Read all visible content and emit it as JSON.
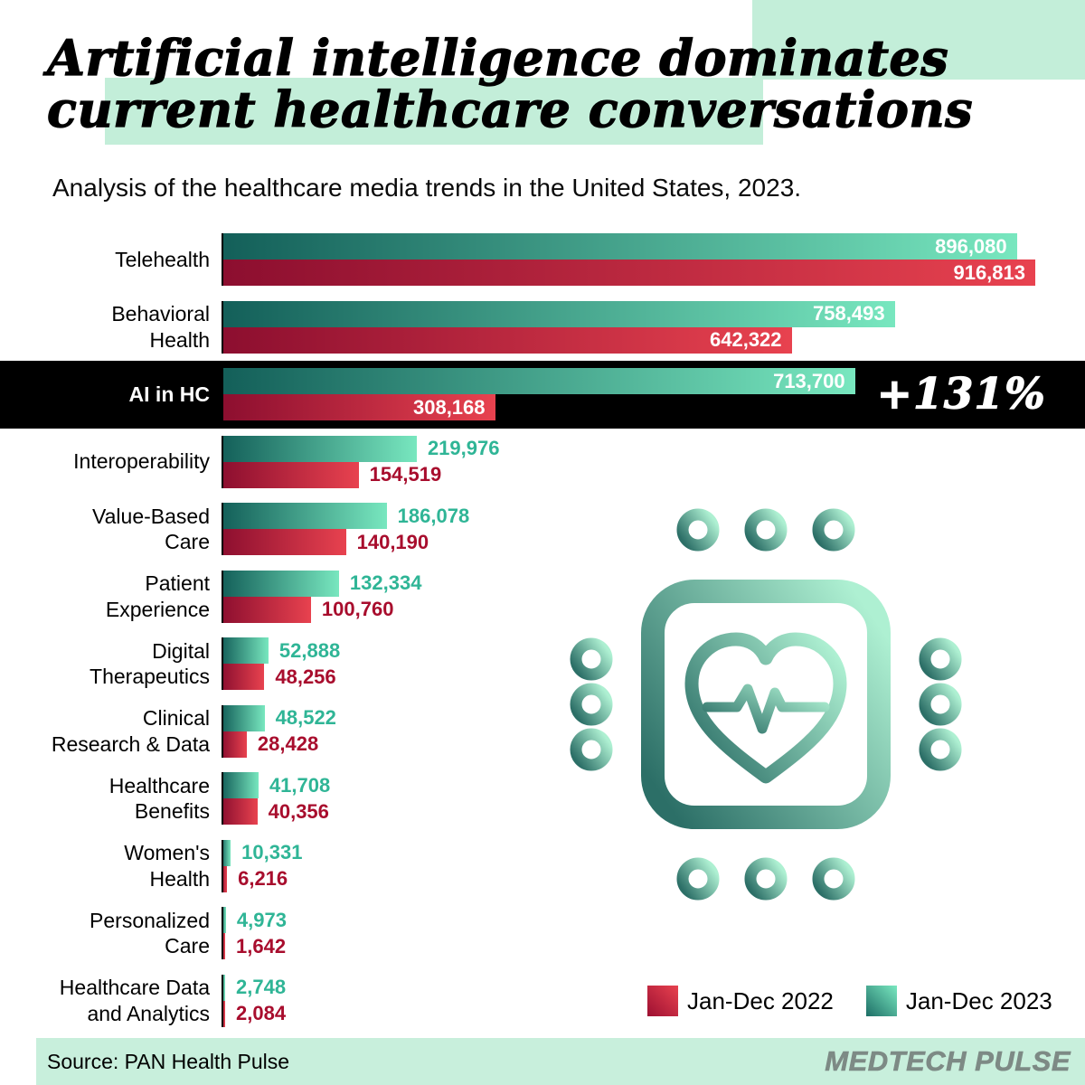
{
  "title": {
    "line1": "Artificial intelligence dominates",
    "line2": "current healthcare conversations"
  },
  "subtitle": "Analysis of the healthcare media trends in the United States, 2023.",
  "chart_data": {
    "type": "bar",
    "orientation": "horizontal",
    "title": "Artificial intelligence dominates current healthcare conversations",
    "subtitle": "Analysis of the healthcare media trends in the United States, 2023.",
    "max_value": 916813,
    "series_names": [
      "Jan-Dec 2023",
      "Jan-Dec 2022"
    ],
    "categories": [
      "Telehealth",
      "Behavioral Health",
      "AI in HC",
      "Interoperability",
      "Value-Based Care",
      "Patient Experience",
      "Digital Therapeutics",
      "Clinical Research & Data",
      "Healthcare Benefits",
      "Women's Health",
      "Personalized Care",
      "Healthcare Data and Analytics"
    ],
    "rows": [
      {
        "label": [
          "Telehealth"
        ],
        "v2023": 896080,
        "l2023": "896,080",
        "v2022": 916813,
        "l2022": "916,813",
        "highlight": false
      },
      {
        "label": [
          "Behavioral",
          "Health"
        ],
        "v2023": 758493,
        "l2023": "758,493",
        "v2022": 642322,
        "l2022": "642,322",
        "highlight": false
      },
      {
        "label": [
          "AI in HC"
        ],
        "v2023": 713700,
        "l2023": "713,700",
        "v2022": 308168,
        "l2022": "308,168",
        "highlight": true,
        "annotation": "+131%"
      },
      {
        "label": [
          "Interoperability"
        ],
        "v2023": 219976,
        "l2023": "219,976",
        "v2022": 154519,
        "l2022": "154,519",
        "highlight": false
      },
      {
        "label": [
          "Value-Based",
          "Care"
        ],
        "v2023": 186078,
        "l2023": "186,078",
        "v2022": 140190,
        "l2022": "140,190",
        "highlight": false
      },
      {
        "label": [
          "Patient",
          "Experience"
        ],
        "v2023": 132334,
        "l2023": "132,334",
        "v2022": 100760,
        "l2022": "100,760",
        "highlight": false
      },
      {
        "label": [
          "Digital",
          "Therapeutics"
        ],
        "v2023": 52888,
        "l2023": "52,888",
        "v2022": 48256,
        "l2022": "48,256",
        "highlight": false
      },
      {
        "label": [
          "Clinical",
          "Research & Data"
        ],
        "v2023": 48522,
        "l2023": "48,522",
        "v2022": 28428,
        "l2022": "28,428",
        "highlight": false
      },
      {
        "label": [
          "Healthcare",
          "Benefits"
        ],
        "v2023": 41708,
        "l2023": "41,708",
        "v2022": 40356,
        "l2022": "40,356",
        "highlight": false
      },
      {
        "label": [
          "Women's",
          "Health"
        ],
        "v2023": 10331,
        "l2023": "10,331",
        "v2022": 6216,
        "l2022": "6,216",
        "highlight": false
      },
      {
        "label": [
          "Personalized",
          "Care"
        ],
        "v2023": 4973,
        "l2023": "4,973",
        "v2022": 1642,
        "l2022": "1,642",
        "highlight": false
      },
      {
        "label": [
          "Healthcare Data",
          "and Analytics"
        ],
        "v2023": 2748,
        "l2023": "2,748",
        "v2022": 2084,
        "l2022": "2,084",
        "highlight": false
      }
    ],
    "legend_position": "bottom-right",
    "grid": false
  },
  "legend": [
    {
      "label": "Jan-Dec 2022",
      "color": "#c61f3e"
    },
    {
      "label": "Jan-Dec 2023",
      "color": "#2fae8f"
    }
  ],
  "colors": {
    "teal_dark": "#135f59",
    "teal_light": "#78e7bf",
    "red_dark": "#8c0e2f",
    "red_light": "#e8424f",
    "teal_text": "#2fb596",
    "red_text": "#a80d2d",
    "mint_background": "#c3eed9",
    "highlight_band": "#000000",
    "brand_gray": "#7d8a85"
  },
  "footer": {
    "source": "Source: PAN Health Pulse",
    "brand": "MEDTECH PULSE"
  }
}
